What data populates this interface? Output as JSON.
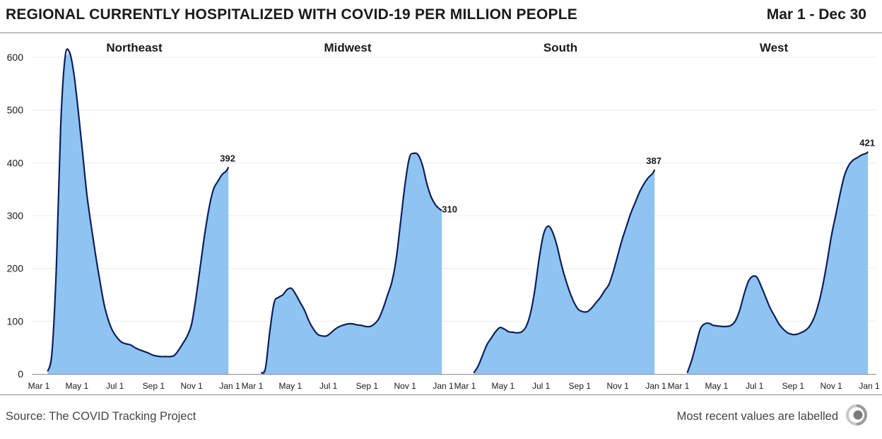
{
  "header": {
    "title": "REGIONAL CURRENTLY HOSPITALIZED WITH COVID-19 PER MILLION PEOPLE",
    "date_range": "Mar 1 - Dec 30"
  },
  "footer": {
    "source": "Source: The COVID Tracking Project",
    "note": "Most recent values are labelled",
    "logo_icon": "covid-tracking-project-logo"
  },
  "colors": {
    "bar": "#8fc4f1",
    "line": "#0d1f5c",
    "grid": "#ececec",
    "axis": "#8c8c8c",
    "text": "#1a1a1a"
  },
  "chart_data": {
    "type": "area",
    "description_type": "small multiples: daily bars with 7-day average line",
    "x_range": [
      "2020-03-01",
      "2021-01-01"
    ],
    "x_ticks": [
      "Mar 1",
      "May 1",
      "Jul 1",
      "Sep 1",
      "Nov 1",
      "Jan 1"
    ],
    "ylim": [
      0,
      650
    ],
    "y_ticks": [
      0,
      100,
      200,
      300,
      400,
      500,
      600
    ],
    "grid": true,
    "panels": [
      {
        "name": "Northeast",
        "last_value": 392,
        "last_label": "392",
        "x": [
          "2020-03-15",
          "2020-03-22",
          "2020-03-29",
          "2020-04-05",
          "2020-04-12",
          "2020-04-19",
          "2020-04-26",
          "2020-05-03",
          "2020-05-10",
          "2020-05-17",
          "2020-05-24",
          "2020-05-31",
          "2020-06-07",
          "2020-06-14",
          "2020-06-21",
          "2020-06-28",
          "2020-07-05",
          "2020-07-12",
          "2020-07-19",
          "2020-07-26",
          "2020-08-02",
          "2020-08-09",
          "2020-08-16",
          "2020-08-23",
          "2020-08-30",
          "2020-09-06",
          "2020-09-13",
          "2020-09-20",
          "2020-09-27",
          "2020-10-04",
          "2020-10-11",
          "2020-10-18",
          "2020-10-25",
          "2020-11-01",
          "2020-11-08",
          "2020-11-15",
          "2020-11-22",
          "2020-11-29",
          "2020-12-06",
          "2020-12-13",
          "2020-12-20",
          "2020-12-27",
          "2020-12-30"
        ],
        "values": [
          5,
          40,
          200,
          470,
          600,
          610,
          570,
          500,
          420,
          340,
          280,
          225,
          175,
          130,
          100,
          80,
          68,
          60,
          57,
          55,
          50,
          46,
          43,
          40,
          36,
          34,
          33,
          33,
          33,
          35,
          45,
          58,
          72,
          95,
          145,
          205,
          265,
          315,
          350,
          365,
          378,
          385,
          392
        ]
      },
      {
        "name": "Midwest",
        "last_value": 310,
        "last_label": "310",
        "x": [
          "2020-03-15",
          "2020-03-22",
          "2020-03-29",
          "2020-04-05",
          "2020-04-12",
          "2020-04-19",
          "2020-04-26",
          "2020-05-03",
          "2020-05-10",
          "2020-05-17",
          "2020-05-24",
          "2020-05-31",
          "2020-06-07",
          "2020-06-14",
          "2020-06-21",
          "2020-06-28",
          "2020-07-05",
          "2020-07-12",
          "2020-07-19",
          "2020-07-26",
          "2020-08-02",
          "2020-08-09",
          "2020-08-16",
          "2020-08-23",
          "2020-08-30",
          "2020-09-06",
          "2020-09-13",
          "2020-09-20",
          "2020-09-27",
          "2020-10-04",
          "2020-10-11",
          "2020-10-18",
          "2020-10-25",
          "2020-11-01",
          "2020-11-08",
          "2020-11-15",
          "2020-11-22",
          "2020-11-29",
          "2020-12-06",
          "2020-12-13",
          "2020-12-20",
          "2020-12-27",
          "2020-12-30"
        ],
        "values": [
          2,
          10,
          80,
          135,
          145,
          150,
          160,
          162,
          150,
          135,
          120,
          100,
          85,
          75,
          72,
          72,
          78,
          85,
          90,
          93,
          95,
          95,
          93,
          92,
          90,
          90,
          95,
          105,
          125,
          150,
          175,
          220,
          290,
          360,
          410,
          418,
          415,
          395,
          360,
          335,
          320,
          312,
          310
        ]
      },
      {
        "name": "South",
        "last_value": 387,
        "last_label": "387",
        "x": [
          "2020-03-15",
          "2020-03-22",
          "2020-03-29",
          "2020-04-05",
          "2020-04-12",
          "2020-04-19",
          "2020-04-26",
          "2020-05-03",
          "2020-05-10",
          "2020-05-17",
          "2020-05-24",
          "2020-05-31",
          "2020-06-07",
          "2020-06-14",
          "2020-06-21",
          "2020-06-28",
          "2020-07-05",
          "2020-07-12",
          "2020-07-19",
          "2020-07-26",
          "2020-08-02",
          "2020-08-09",
          "2020-08-16",
          "2020-08-23",
          "2020-08-30",
          "2020-09-06",
          "2020-09-13",
          "2020-09-20",
          "2020-09-27",
          "2020-10-04",
          "2020-10-11",
          "2020-10-18",
          "2020-10-25",
          "2020-11-01",
          "2020-11-08",
          "2020-11-15",
          "2020-11-22",
          "2020-11-29",
          "2020-12-06",
          "2020-12-13",
          "2020-12-20",
          "2020-12-27",
          "2020-12-30"
        ],
        "values": [
          2,
          15,
          35,
          55,
          68,
          80,
          88,
          85,
          80,
          79,
          78,
          80,
          90,
          115,
          160,
          220,
          265,
          280,
          270,
          245,
          210,
          180,
          155,
          135,
          122,
          118,
          118,
          125,
          135,
          145,
          158,
          170,
          195,
          225,
          255,
          280,
          305,
          325,
          345,
          360,
          372,
          380,
          387
        ]
      },
      {
        "name": "West",
        "last_value": 421,
        "last_label": "421",
        "x": [
          "2020-03-15",
          "2020-03-22",
          "2020-03-29",
          "2020-04-05",
          "2020-04-12",
          "2020-04-19",
          "2020-04-26",
          "2020-05-03",
          "2020-05-10",
          "2020-05-17",
          "2020-05-24",
          "2020-05-31",
          "2020-06-07",
          "2020-06-14",
          "2020-06-21",
          "2020-06-28",
          "2020-07-05",
          "2020-07-12",
          "2020-07-19",
          "2020-07-26",
          "2020-08-02",
          "2020-08-09",
          "2020-08-16",
          "2020-08-23",
          "2020-08-30",
          "2020-09-06",
          "2020-09-13",
          "2020-09-20",
          "2020-09-27",
          "2020-10-04",
          "2020-10-11",
          "2020-10-18",
          "2020-10-25",
          "2020-11-01",
          "2020-11-08",
          "2020-11-15",
          "2020-11-22",
          "2020-11-29",
          "2020-12-06",
          "2020-12-13",
          "2020-12-20",
          "2020-12-27",
          "2020-12-30"
        ],
        "values": [
          2,
          25,
          55,
          85,
          95,
          96,
          92,
          91,
          90,
          90,
          92,
          100,
          120,
          150,
          175,
          185,
          183,
          165,
          145,
          125,
          110,
          95,
          85,
          78,
          75,
          75,
          78,
          82,
          90,
          105,
          130,
          165,
          210,
          260,
          300,
          340,
          375,
          395,
          405,
          410,
          415,
          418,
          421
        ]
      }
    ]
  }
}
